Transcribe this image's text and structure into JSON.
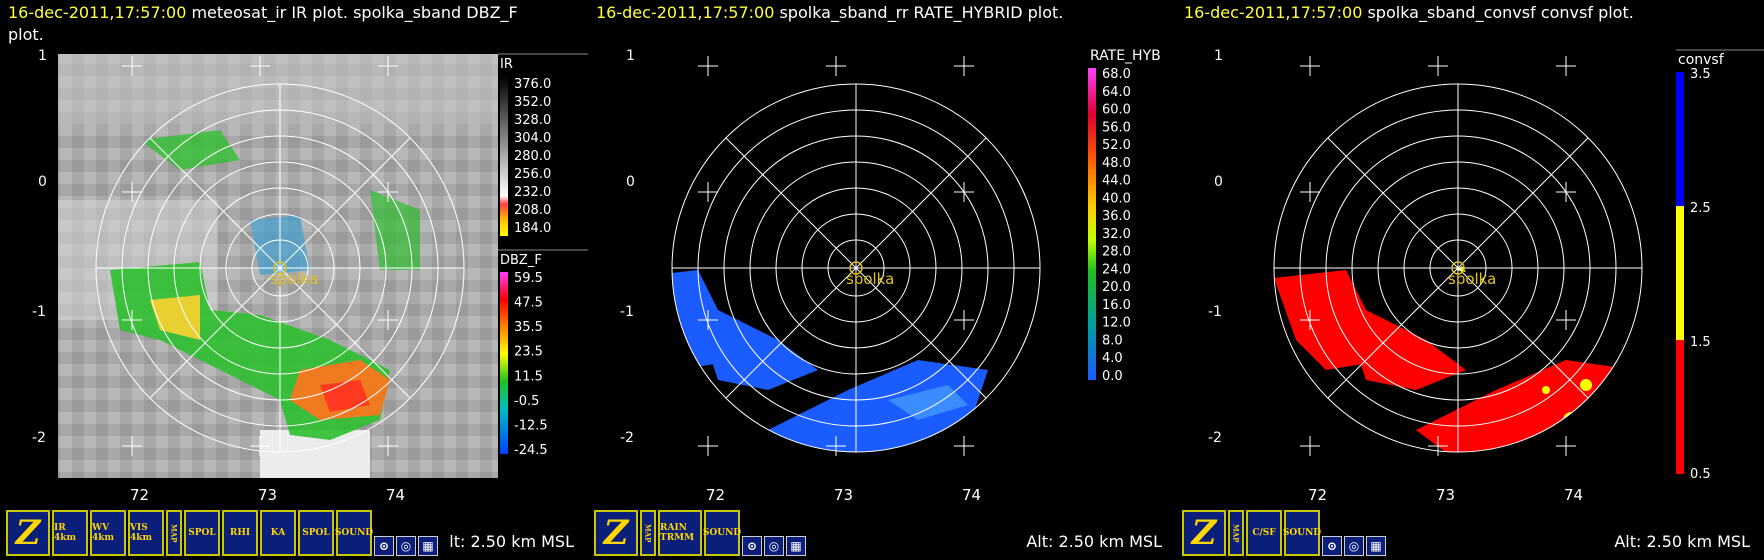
{
  "panels": [
    {
      "timestamp": "16-dec-2011,17:57:00",
      "title_rest": " meteosat_ir IR  plot.  spolka_sband DBZ_F",
      "title_line2": "plot.",
      "legend1_title": "IR",
      "legend1_ticks": [
        "376.0",
        "352.0",
        "328.0",
        "304.0",
        "280.0",
        "256.0",
        "232.0",
        "208.0",
        "184.0"
      ],
      "legend2_title": "DBZ_F",
      "legend2_ticks": [
        "59.5",
        "47.5",
        "35.5",
        "23.5",
        "11.5",
        "-0.5",
        "-12.5",
        "-24.5"
      ],
      "y_ticks": [
        "1",
        "0",
        "-1",
        "-2"
      ],
      "x_ticks": [
        "72",
        "73",
        "74"
      ],
      "station": "spolka",
      "alt": "lt: 2.50 km MSL",
      "toolbar": [
        "Z",
        "IR 4km",
        "WV 4km",
        "VIS 4km",
        "MAP",
        "SPOL",
        "RHI",
        "KA",
        "SPOL",
        "SOUND",
        "",
        "",
        ""
      ]
    },
    {
      "timestamp": "16-dec-2011,17:57:00",
      "title_rest": " spolka_sband_rr RATE_HYBRID  plot.",
      "legend1_title": "RATE_HYB",
      "legend1_ticks": [
        "68.0",
        "64.0",
        "60.0",
        "56.0",
        "52.0",
        "48.0",
        "44.0",
        "40.0",
        "36.0",
        "32.0",
        "28.0",
        "24.0",
        "20.0",
        "16.0",
        "12.0",
        "8.0",
        "4.0",
        "0.0"
      ],
      "y_ticks": [
        "1",
        "0",
        "-1",
        "-2"
      ],
      "x_ticks": [
        "72",
        "73",
        "74"
      ],
      "station": "spolka",
      "alt": "Alt: 2.50 km MSL",
      "toolbar": [
        "Z",
        "MAP",
        "RAIN TRMM",
        "SOUND",
        "",
        "",
        ""
      ]
    },
    {
      "timestamp": "16-dec-2011,17:57:00",
      "title_rest": " spolka_sband_convsf convsf  plot.",
      "legend1_title": "convsf",
      "legend1_ticks": [
        "3.5",
        "2.5",
        "1.5",
        "0.5"
      ],
      "y_ticks": [
        "1",
        "0",
        "-1",
        "-2"
      ],
      "x_ticks": [
        "72",
        "73",
        "74"
      ],
      "station": "spolka",
      "alt": "Alt: 2.50 km MSL",
      "toolbar": [
        "Z",
        "MAP",
        "C/SF",
        "SOUND",
        "",
        "",
        ""
      ]
    }
  ],
  "colors": {
    "timestamp": "#ffff40",
    "station": "#e0c020",
    "rain_blue": "#1a5cff",
    "convective_red": "#ff0000",
    "stratiform_yellow": "#ffff00"
  }
}
